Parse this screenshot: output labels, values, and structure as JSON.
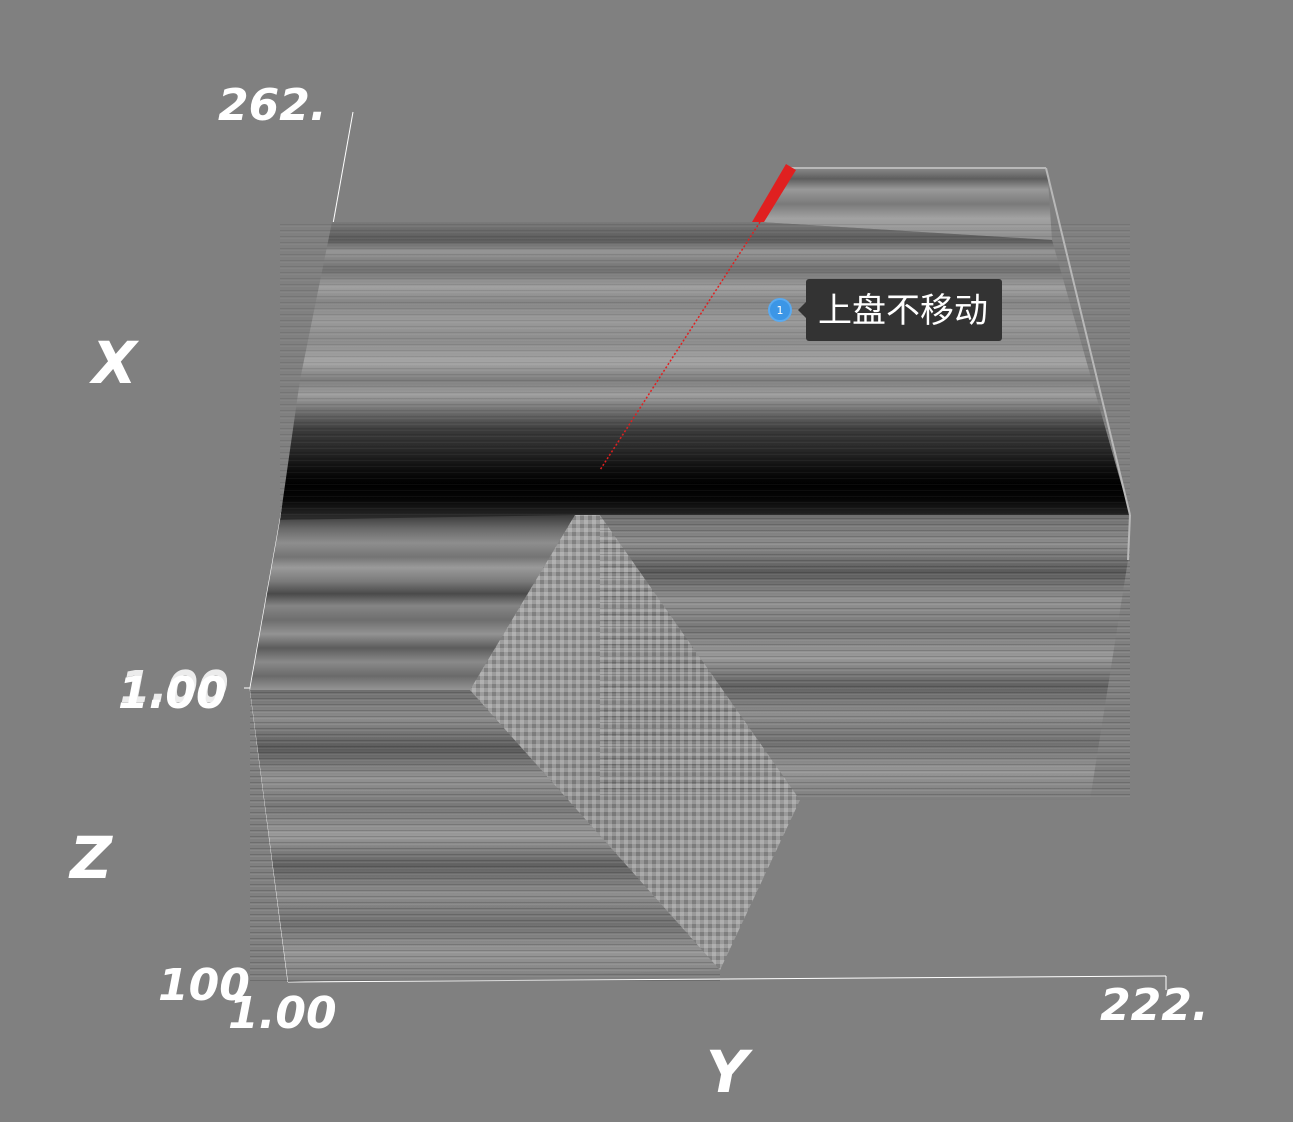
{
  "viewer": {
    "background": "#808080",
    "axes": {
      "x": {
        "title": "X",
        "max_label": "262.",
        "min_label": "1.00"
      },
      "y": {
        "title": "Y",
        "min_label": "1.00",
        "max_label": "222."
      },
      "z": {
        "title": "Z",
        "min_label": "1.00",
        "max_label": "100"
      }
    },
    "annotation": {
      "number": "1",
      "text": "上盘不移动",
      "marker_color": "#3c96e6",
      "bubble_color": "#333333"
    },
    "fault_line_color": "#e02020",
    "icons": {
      "annotation_marker": "numbered-circle-icon"
    }
  }
}
